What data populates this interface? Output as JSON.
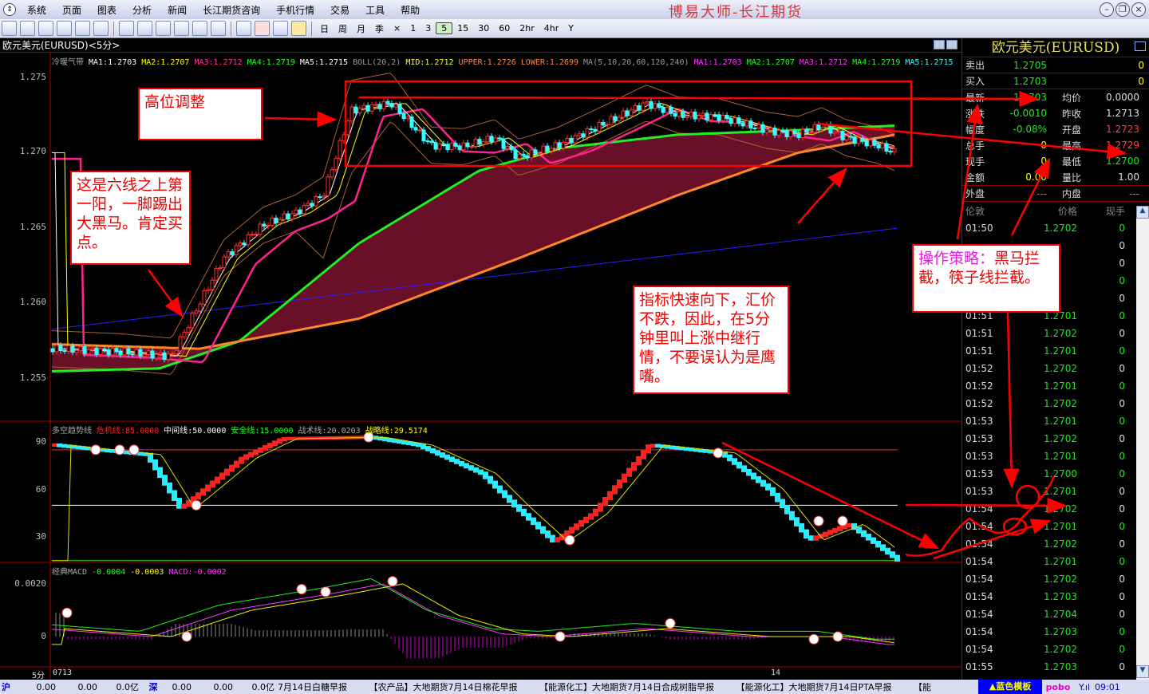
{
  "app": {
    "title": "博易大师-长江期货"
  },
  "menu": [
    "系统",
    "页面",
    "图表",
    "分析",
    "新闻",
    "长江期货咨询",
    "手机行情",
    "交易",
    "工具",
    "帮助"
  ],
  "periods": [
    "日",
    "周",
    "月",
    "季",
    "×",
    "1",
    "3",
    "5",
    "15",
    "30",
    "60",
    "2hr",
    "4hr",
    "Y"
  ],
  "active_period": "5",
  "chart": {
    "title": "欧元美元(EURUSD)<5分>",
    "main_ind": [
      {
        "t": "冷暖气带",
        "c": "#aaaaaa"
      },
      {
        "t": "MA1:1.2703",
        "c": "#ffffff"
      },
      {
        "t": "MA2:1.2707",
        "c": "#ffff00"
      },
      {
        "t": "MA3:1.2712",
        "c": "#ff3399"
      },
      {
        "t": "MA4:1.2719",
        "c": "#22ff22"
      },
      {
        "t": "MA5:1.2715",
        "c": "#ffffff"
      },
      {
        "t": "BOLL(20,2)",
        "c": "#999999"
      },
      {
        "t": "MID:1.2712",
        "c": "#ffff00"
      },
      {
        "t": "UPPER:1.2726",
        "c": "#ff8844"
      },
      {
        "t": "LOWER:1.2699",
        "c": "#ff8844"
      },
      {
        "t": "MA(5,10,20,60,120,240)",
        "c": "#999999"
      },
      {
        "t": "MA1:1.2703",
        "c": "#ff33ff"
      },
      {
        "t": "MA2:1.2707",
        "c": "#22ff22"
      },
      {
        "t": "MA3:1.2712",
        "c": "#ff33ff"
      },
      {
        "t": "MA4:1.2719",
        "c": "#22ff22"
      },
      {
        "t": "MA5:1.2715",
        "c": "#33ffff"
      }
    ],
    "price_axis": [
      "1.275",
      "1.270",
      "1.265",
      "1.260",
      "1.255"
    ],
    "osc_ind": [
      {
        "t": "多空趋势线",
        "c": "#aaaaaa"
      },
      {
        "t": "危机线:85.0000",
        "c": "#ff2222"
      },
      {
        "t": "中间线:50.0000",
        "c": "#ffffff"
      },
      {
        "t": "安全线:15.0000",
        "c": "#22ff22"
      },
      {
        "t": "战术线:20.0203",
        "c": "#aaaaaa"
      },
      {
        "t": "战略线:29.5174",
        "c": "#ffff00"
      }
    ],
    "osc_axis": [
      "90",
      "60",
      "30"
    ],
    "macd_ind": [
      {
        "t": "经典MACD",
        "c": "#aaaaaa"
      },
      {
        "t": "-0.0004",
        "c": "#22ff22"
      },
      {
        "t": "-0.0003",
        "c": "#ffff00"
      },
      {
        "t": "MACD:-0.0002",
        "c": "#ff33ff"
      }
    ],
    "macd_axis": [
      "0.0020",
      "0"
    ],
    "x_axis": {
      "period": "5分",
      "start": "0713",
      "mid": "14"
    }
  },
  "notes": {
    "n1": "高位调整",
    "n2": "这是六线之上第一阳，一脚踢出大黑马。肯定买点。",
    "n3": "指标快速向下，汇价不跌，因此，在5分钟里叫上涨中继行情，不要误认为是鹰嘴。",
    "n4a": "操作策略：",
    "n4b": "黑马拦截，筷子线拦截。"
  },
  "quote": {
    "title": "欧元美元(EURUSD)",
    "sell": {
      "k": "卖出",
      "price": "1.2705",
      "vol": "0"
    },
    "buy": {
      "k": "买入",
      "price": "1.2703",
      "vol": "0"
    },
    "rows": [
      {
        "k": "最新",
        "v": "1.2703",
        "vc": "#1ee81e",
        "k2": "均价",
        "v2": "0.0000",
        "v2c": "#dddddd"
      },
      {
        "k": "涨跌",
        "v": "-0.0010",
        "vc": "#1ee81e",
        "k2": "昨收",
        "v2": "1.2713",
        "v2c": "#dddddd"
      },
      {
        "k": "幅度",
        "v": "-0.08%",
        "vc": "#1ee81e",
        "k2": "开盘",
        "v2": "1.2723",
        "v2c": "#ff4040"
      },
      {
        "k": "总手",
        "v": "0",
        "vc": "#ffff00",
        "k2": "最高",
        "v2": "1.2729",
        "v2c": "#ff4040"
      },
      {
        "k": "现手",
        "v": "0",
        "vc": "#ffff00",
        "k2": "最低",
        "v2": "1.2700",
        "v2c": "#1ee81e"
      },
      {
        "k": "金额",
        "v": "0.00",
        "vc": "#ffff00",
        "k2": "量比",
        "v2": "1.00",
        "v2c": "#dddddd"
      }
    ],
    "outer": {
      "k": "外盘",
      "v": "---",
      "k2": "内盘",
      "v2": "---"
    },
    "ticks_header": [
      "伦敦",
      "价格",
      "现手"
    ],
    "ticks": [
      {
        "t": "01:50",
        "p": "1.2702",
        "v": "0",
        "dn": true
      },
      {
        "t": "",
        "p": "",
        "v": "0",
        "dn": false
      },
      {
        "t": "",
        "p": "",
        "v": "0",
        "dn": false
      },
      {
        "t": "",
        "p": "",
        "v": "0",
        "dn": true
      },
      {
        "t": "",
        "p": "",
        "v": "0",
        "dn": false
      },
      {
        "t": "01:51",
        "p": "1.2701",
        "v": "0",
        "dn": true
      },
      {
        "t": "01:51",
        "p": "1.2702",
        "v": "0",
        "dn": false
      },
      {
        "t": "01:51",
        "p": "1.2701",
        "v": "0",
        "dn": true
      },
      {
        "t": "01:52",
        "p": "1.2702",
        "v": "0",
        "dn": false
      },
      {
        "t": "01:52",
        "p": "1.2701",
        "v": "0",
        "dn": true
      },
      {
        "t": "01:52",
        "p": "1.2702",
        "v": "0",
        "dn": false
      },
      {
        "t": "01:53",
        "p": "1.2701",
        "v": "0",
        "dn": true
      },
      {
        "t": "01:53",
        "p": "1.2702",
        "v": "0",
        "dn": false
      },
      {
        "t": "01:53",
        "p": "1.2701",
        "v": "0",
        "dn": true
      },
      {
        "t": "01:53",
        "p": "1.2700",
        "v": "0",
        "dn": true
      },
      {
        "t": "01:53",
        "p": "1.2701",
        "v": "0",
        "dn": false
      },
      {
        "t": "01:54",
        "p": "1.2702",
        "v": "0",
        "dn": false
      },
      {
        "t": "01:54",
        "p": "1.2701",
        "v": "0",
        "dn": true
      },
      {
        "t": "01:54",
        "p": "1.2702",
        "v": "0",
        "dn": false
      },
      {
        "t": "01:54",
        "p": "1.2701",
        "v": "0",
        "dn": true
      },
      {
        "t": "01:54",
        "p": "1.2702",
        "v": "0",
        "dn": false
      },
      {
        "t": "01:54",
        "p": "1.2703",
        "v": "0",
        "dn": false
      },
      {
        "t": "01:54",
        "p": "1.2704",
        "v": "0",
        "dn": false
      },
      {
        "t": "01:54",
        "p": "1.2703",
        "v": "0",
        "dn": true
      },
      {
        "t": "01:54",
        "p": "1.2702",
        "v": "0",
        "dn": true
      },
      {
        "t": "01:55",
        "p": "1.2703",
        "v": "0",
        "dn": false
      }
    ]
  },
  "status": {
    "sh": "沪",
    "sh_vals": [
      "0.00",
      "0.00",
      "0.0亿"
    ],
    "sz": "深",
    "sz_vals": [
      "0.00",
      "0.00",
      "0.0亿"
    ],
    "news": "7月14日白糖早报　　　【农产品】大地期货7月14日棉花早报　　　【能源化工】大地期货7月14日合成树脂早报　　　【能源化工】大地期货7月14日PTA早报　　　【能",
    "template": "▲蓝色模板",
    "brand": "pobo",
    "time": "09:01"
  }
}
